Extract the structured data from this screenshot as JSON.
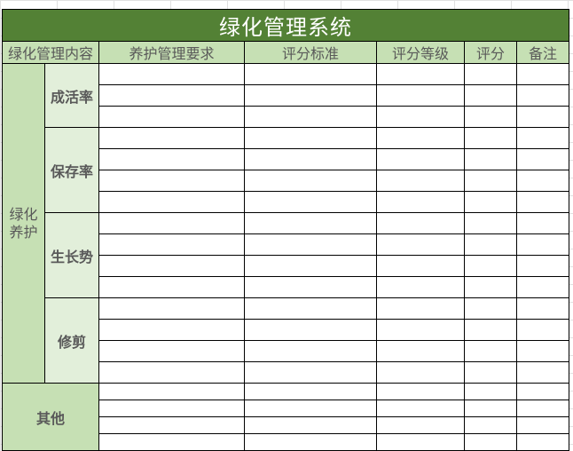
{
  "title": "绿化管理系统",
  "headers": [
    "绿化管理内容",
    "养护管理要求",
    "评分标准",
    "评分等级",
    "评分",
    "备注"
  ],
  "main_group": {
    "label_line1": "绿化",
    "label_line2": "养护",
    "subgroups": [
      {
        "label": "成活率",
        "rows": 3
      },
      {
        "label": "保存率",
        "rows": 4
      },
      {
        "label": "生长势",
        "rows": 4
      },
      {
        "label": "修剪",
        "rows": 4
      }
    ]
  },
  "other_group": {
    "label": "其他",
    "rows": 4
  },
  "colors": {
    "title_bg": "#538135",
    "header_bg": "#C6E0B4",
    "sub_bg": "#E2EFDA"
  }
}
